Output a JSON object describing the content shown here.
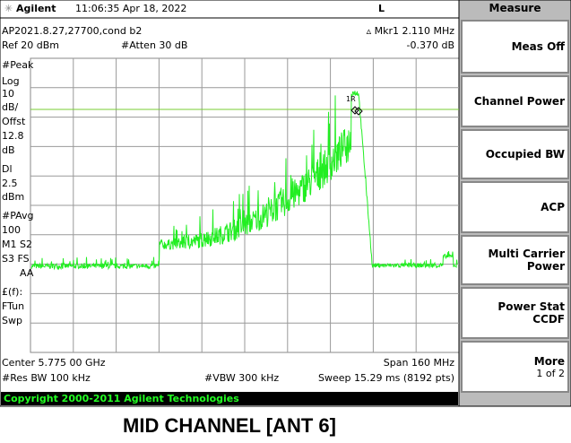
{
  "header": {
    "brand": "Agilent",
    "datetime": "11:06:35  Apr 18, 2022",
    "mode": "L"
  },
  "file": "AP2021.8.27,27700,cond b2",
  "marker": {
    "label": "Mkr1  2.110 MHz",
    "value": "-0.370 dB",
    "tag": "1R"
  },
  "ref": "Ref 20 dBm",
  "atten": "#Atten 30 dB",
  "left_labels": [
    "#Peak",
    "Log",
    "10",
    "dB/",
    "Offst",
    "12.8",
    "dB",
    "Dl",
    "2.5",
    "dBm",
    "#PAvg",
    "100",
    "M1  S2",
    "S3  FS",
    "AA",
    "£(f):",
    "FTun",
    "Swp"
  ],
  "bottom": {
    "center": "Center 5.775 00 GHz",
    "span": "Span 160 MHz",
    "res_bw": "#Res BW 100 kHz",
    "vbw": "#VBW 300 kHz",
    "sweep": "Sweep 15.29 ms (8192 pts)"
  },
  "copyright": "Copyright 2000-2011 Agilent Technologies",
  "caption": "MID CHANNEL [ANT 6]",
  "softkeys": {
    "title": "Measure",
    "keys": [
      [
        "Meas Off"
      ],
      [
        "Channel Power"
      ],
      [
        "Occupied BW"
      ],
      [
        "ACP"
      ],
      [
        "Multi Carrier",
        "Power"
      ],
      [
        "Power Stat",
        "CCDF"
      ],
      [
        "More",
        "1 of 2"
      ]
    ]
  }
}
